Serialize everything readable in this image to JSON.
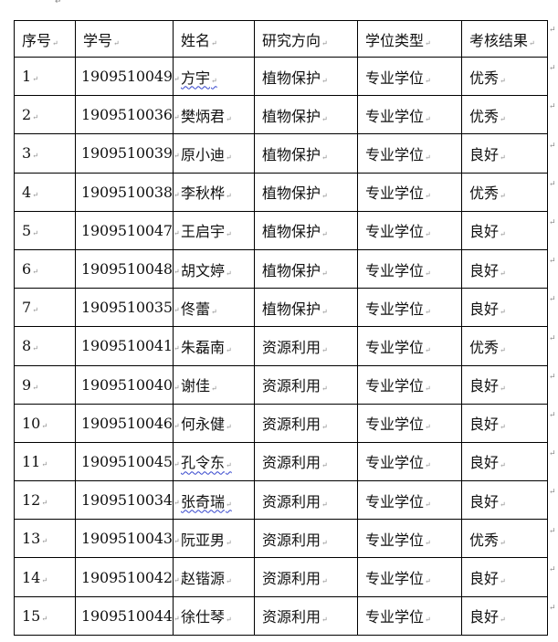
{
  "headers": [
    "序号",
    "学号",
    "姓名",
    "研究方向",
    "学位类型",
    "考核结果"
  ],
  "rows": [
    [
      "1",
      "1909510049",
      "方宇",
      "植物保护",
      "专业学位",
      "优秀"
    ],
    [
      "2",
      "1909510036",
      "樊炳君",
      "植物保护",
      "专业学位",
      "优秀"
    ],
    [
      "3",
      "1909510039",
      "原小迪",
      "植物保护",
      "专业学位",
      "良好"
    ],
    [
      "4",
      "1909510038",
      "李秋桦",
      "植物保护",
      "专业学位",
      "优秀"
    ],
    [
      "5",
      "1909510047",
      "王启宇",
      "植物保护",
      "专业学位",
      "良好"
    ],
    [
      "6",
      "1909510048",
      "胡文婷",
      "植物保护",
      "专业学位",
      "良好"
    ],
    [
      "7",
      "1909510035",
      "佟蕾",
      "植物保护",
      "专业学位",
      "良好"
    ],
    [
      "8",
      "1909510041",
      "朱磊南",
      "资源利用",
      "专业学位",
      "优秀"
    ],
    [
      "9",
      "1909510040",
      "谢佳",
      "资源利用",
      "专业学位",
      "良好"
    ],
    [
      "10",
      "1909510046",
      "何永健",
      "资源利用",
      "专业学位",
      "良好"
    ],
    [
      "11",
      "1909510045",
      "孔令东",
      "资源利用",
      "专业学位",
      "良好"
    ],
    [
      "12",
      "1909510034",
      "张奇瑞",
      "资源利用",
      "专业学位",
      "良好"
    ],
    [
      "13",
      "1909510043",
      "阮亚男",
      "资源利用",
      "专业学位",
      "优秀"
    ],
    [
      "14",
      "1909510042",
      "赵锴源",
      "资源利用",
      "专业学位",
      "良好"
    ],
    [
      "15",
      "1909510044",
      "徐仕琴",
      "资源利用",
      "专业学位",
      "良好"
    ]
  ],
  "spellcheck_flagged_names": [
    "方宇",
    "孔令东",
    "张奇瑞"
  ],
  "spellcheck_color": "#3344cc"
}
